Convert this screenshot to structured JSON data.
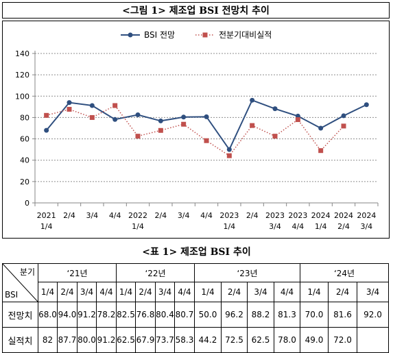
{
  "figure": {
    "title": "<그림 1> 제조업 BSI 전망치 추이"
  },
  "table": {
    "title": "<표 1> 제조업 BSI 추이",
    "corner_top": "분기",
    "corner_bottom": "BSI",
    "years": [
      "‘21년",
      "‘22년",
      "‘23년",
      "‘24년"
    ],
    "quarters": [
      "1/4",
      "2/4",
      "3/4",
      "4/4",
      "1/4",
      "2/4",
      "3/4",
      "4/4",
      "1/4",
      "2/4",
      "3/4",
      "4/4",
      "1/4",
      "2/4",
      "3/4"
    ],
    "rows": [
      {
        "label": "전망치",
        "values": [
          "68.0",
          "94.0",
          "91.2",
          "78.2",
          "82.5",
          "76.8",
          "80.4",
          "80.7",
          "50.0",
          "96.2",
          "88.2",
          "81.3",
          "70.0",
          "81.6",
          "92.0"
        ]
      },
      {
        "label": "실적치",
        "values": [
          "82",
          "87.7",
          "80.0",
          "91.2",
          "62.5",
          "67.9",
          "73.7",
          "58.3",
          "44.2",
          "72.5",
          "62.5",
          "78.0",
          "49.0",
          "72.0",
          ""
        ]
      }
    ]
  },
  "chart_data": {
    "type": "line",
    "title": "",
    "xlabel": "",
    "ylabel": "",
    "ylim": [
      0,
      140
    ],
    "yticks": [
      "0",
      "20",
      "40",
      "60",
      "80",
      "100",
      "120",
      "140"
    ],
    "grid": true,
    "legend_position": "top",
    "categories": [
      [
        "2021",
        "1/4"
      ],
      [
        "2/4"
      ],
      [
        "3/4"
      ],
      [
        "4/4"
      ],
      [
        "2022",
        "1/4"
      ],
      [
        "2/4"
      ],
      [
        "3/4"
      ],
      [
        "4/4"
      ],
      [
        "2023",
        "1/4"
      ],
      [
        "2/4"
      ],
      [
        "2023",
        "3/4"
      ],
      [
        "2023",
        "4/4"
      ],
      [
        "2024",
        "1/4"
      ],
      [
        "2024",
        "2/4"
      ],
      [
        "2024",
        "3/4"
      ]
    ],
    "series": [
      {
        "name": "BSI 전망",
        "color": "#2f4f7f",
        "marker": "circle",
        "style": "solid",
        "values": [
          68.0,
          94.0,
          91.2,
          78.2,
          82.5,
          76.8,
          80.4,
          80.7,
          50.0,
          96.2,
          88.2,
          81.3,
          70.0,
          81.6,
          92.0
        ]
      },
      {
        "name": "전분기대비실적",
        "color": "#c0504d",
        "marker": "square",
        "style": "dotted",
        "values": [
          82,
          87.7,
          80.0,
          91.2,
          62.5,
          67.9,
          73.7,
          58.3,
          44.2,
          72.5,
          62.5,
          78.0,
          49.0,
          72.0,
          null
        ]
      }
    ]
  }
}
